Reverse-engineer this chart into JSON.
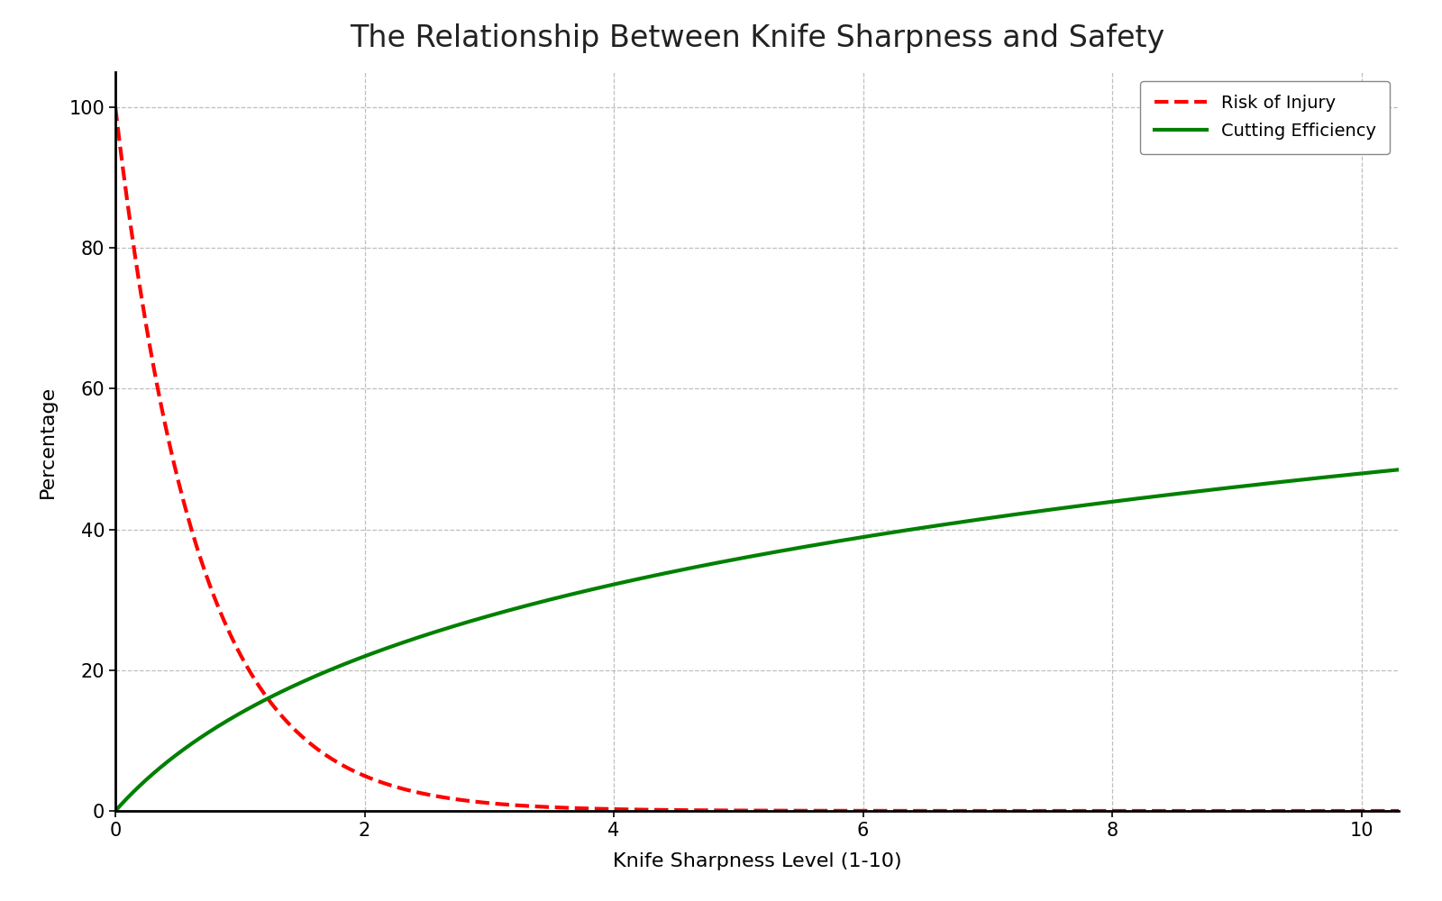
{
  "title": "The Relationship Between Knife Sharpness and Safety",
  "xlabel": "Knife Sharpness Level (1-10)",
  "ylabel": "Percentage",
  "xlim": [
    0,
    10.3
  ],
  "ylim": [
    0,
    105
  ],
  "yticks": [
    0,
    20,
    40,
    60,
    80,
    100
  ],
  "xticks": [
    0,
    2,
    4,
    6,
    8,
    10
  ],
  "risk_label": "Risk of Injury",
  "efficiency_label": "Cutting Efficiency",
  "risk_color": "red",
  "efficiency_color": "green",
  "background_color": "#ffffff",
  "grid_color": "#b0b0b0",
  "title_fontsize": 24,
  "axis_label_fontsize": 16,
  "tick_fontsize": 15,
  "legend_fontsize": 14,
  "line_width": 3.0,
  "risk_decay": 1.5,
  "efficiency_scale": 20.0
}
